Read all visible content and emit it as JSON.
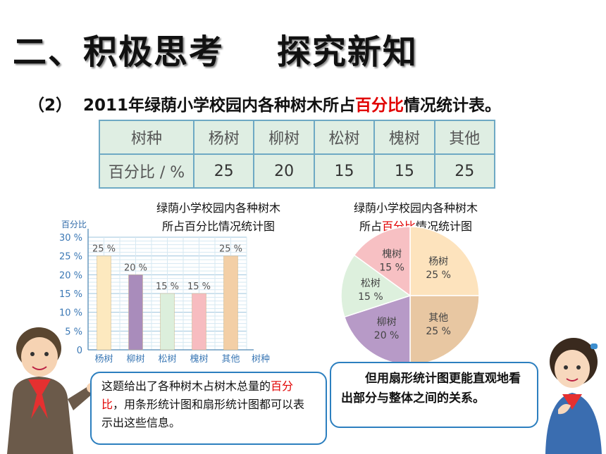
{
  "heading": "二、积极思考    探究新知",
  "subtitle": {
    "prefix": "（2）  2011年绿荫小学校园内各种树木所占",
    "highlight": "百分比",
    "suffix": "情况统计表。"
  },
  "table": {
    "row1": [
      "树种",
      "杨树",
      "柳树",
      "松树",
      "槐树",
      "其他"
    ],
    "row2": [
      "百分比 / %",
      "25",
      "20",
      "15",
      "15",
      "25"
    ]
  },
  "bar_title": [
    "绿荫小学校园内各种树木",
    "所占百分比情况统计图"
  ],
  "pie_title": {
    "line1": "绿荫小学校园内各种树木",
    "line2_prefix": "所占",
    "line2_highlight": "百分比",
    "line2_suffix": "情况统计图"
  },
  "bubble_left": {
    "text1": "这题给出了各种树木占树木总量的",
    "highlight1": "百",
    "highlight2": "分比",
    "text2": "，用条形统计图和扇形统计图都可以表示出这些信息。"
  },
  "bubble_right": "但用扇形统计图更能直观地看出部分与整体之间的关系。",
  "chart_data": [
    {
      "type": "bar",
      "title": "绿荫小学校园内各种树木所占百分比情况统计图",
      "ylabel": "百分比",
      "xlabel": "树种",
      "categories": [
        "杨树",
        "柳树",
        "松树",
        "槐树",
        "其他"
      ],
      "values": [
        25,
        20,
        15,
        15,
        25
      ],
      "value_labels": [
        "25 %",
        "20 %",
        "15 %",
        "15 %",
        "25 %"
      ],
      "yticks": [
        "0",
        "5 %",
        "10 %",
        "15 %",
        "20 %",
        "25 %",
        "30 %"
      ],
      "ylim": [
        0,
        30
      ],
      "grid": true,
      "colors": [
        "#fde9bf",
        "#a98cbb",
        "#dcefdc",
        "#f7bcc0",
        "#f3cfa6"
      ]
    },
    {
      "type": "pie",
      "title": "绿荫小学校园内各种树木所占百分比情况统计图",
      "labels": [
        "杨树",
        "其他",
        "柳树",
        "松树",
        "槐树"
      ],
      "values": [
        25,
        25,
        20,
        15,
        15
      ],
      "value_labels": [
        "25 %",
        "25 %",
        "20 %",
        "15 %",
        "15 %"
      ],
      "colors": [
        "#fde3bd",
        "#e8c7a2",
        "#b79ac7",
        "#ddf0dd",
        "#f7c0c3"
      ]
    }
  ]
}
